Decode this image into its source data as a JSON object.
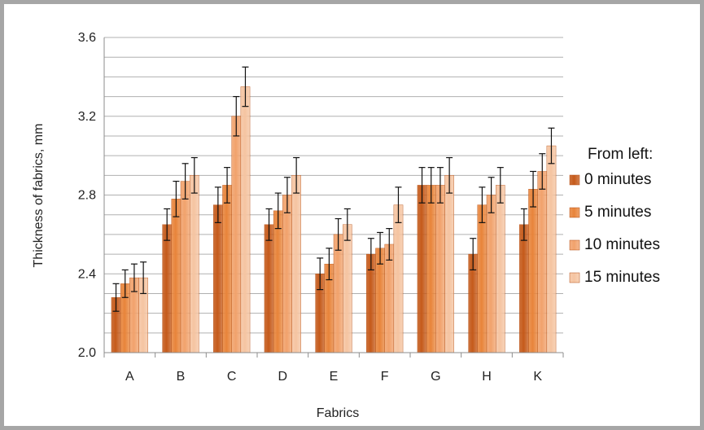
{
  "chart_data": {
    "type": "bar",
    "xlabel": "Fabrics",
    "ylabel": "Thickness of fabrics, mm",
    "ylim": [
      2.0,
      3.6
    ],
    "yticks": [
      "2.0",
      "2.4",
      "2.8",
      "3.2",
      "3.6"
    ],
    "grid": true,
    "legend_title": "From left:",
    "legend_position": "right",
    "categories": [
      "A",
      "B",
      "C",
      "D",
      "E",
      "F",
      "G",
      "H",
      "K"
    ],
    "series": [
      {
        "name": "0 minutes",
        "color": "#c55a1a",
        "values": [
          2.28,
          2.65,
          2.75,
          2.65,
          2.4,
          2.5,
          2.85,
          2.5,
          2.65
        ],
        "errors": [
          0.07,
          0.08,
          0.09,
          0.08,
          0.08,
          0.08,
          0.09,
          0.08,
          0.08
        ]
      },
      {
        "name": "5 minutes",
        "color": "#e8843a",
        "values": [
          2.35,
          2.78,
          2.85,
          2.72,
          2.45,
          2.53,
          2.85,
          2.75,
          2.83
        ],
        "errors": [
          0.07,
          0.09,
          0.09,
          0.09,
          0.08,
          0.08,
          0.09,
          0.09,
          0.09
        ]
      },
      {
        "name": "10 minutes",
        "color": "#f1a26c",
        "values": [
          2.38,
          2.87,
          3.2,
          2.8,
          2.6,
          2.55,
          2.85,
          2.8,
          2.92
        ],
        "errors": [
          0.07,
          0.09,
          0.1,
          0.09,
          0.08,
          0.08,
          0.09,
          0.09,
          0.09
        ]
      },
      {
        "name": "15 minutes",
        "color": "#f5c4a1",
        "values": [
          2.38,
          2.9,
          3.35,
          2.9,
          2.65,
          2.75,
          2.9,
          2.85,
          3.05
        ],
        "errors": [
          0.08,
          0.09,
          0.1,
          0.09,
          0.08,
          0.09,
          0.09,
          0.09,
          0.09
        ]
      }
    ]
  }
}
